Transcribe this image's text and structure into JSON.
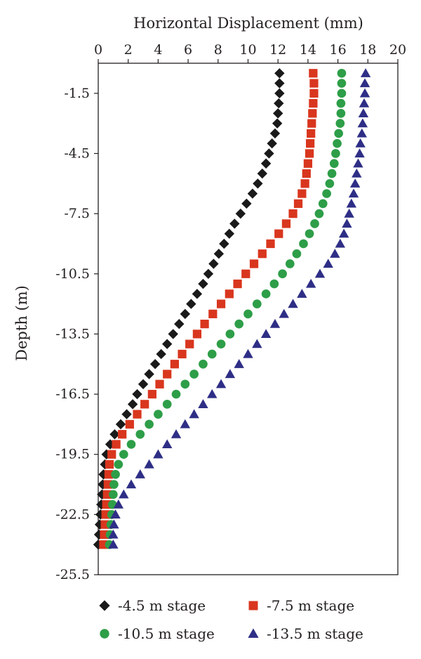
{
  "chart_data": {
    "type": "scatter",
    "xlabel": "Horizontal Displacement (mm)",
    "ylabel": "Depth (m)",
    "xlim": [
      0,
      20
    ],
    "ylim": [
      -25.5,
      0
    ],
    "x_ticks": [
      "0",
      "2",
      "4",
      "6",
      "8",
      "10",
      "12",
      "14",
      "16",
      "18",
      "20"
    ],
    "y_ticks": [
      "-1.5",
      "-4.5",
      "-7.5",
      "-10.5",
      "-13.5",
      "-16.5",
      "-19.5",
      "-22.5",
      "-25.5"
    ],
    "x_axis_position": "top",
    "grid": false,
    "legend_position": "bottom",
    "series": [
      {
        "name": "-4.5 m stage",
        "marker": "diamond",
        "color": "#1a1a1a",
        "points": [
          [
            12.1,
            -0.5
          ],
          [
            12.1,
            -1
          ],
          [
            12.1,
            -1.5
          ],
          [
            12.05,
            -2
          ],
          [
            12.0,
            -2.5
          ],
          [
            11.95,
            -3
          ],
          [
            11.8,
            -3.5
          ],
          [
            11.6,
            -4
          ],
          [
            11.4,
            -4.5
          ],
          [
            11.2,
            -5
          ],
          [
            10.95,
            -5.5
          ],
          [
            10.65,
            -6
          ],
          [
            10.3,
            -6.5
          ],
          [
            9.9,
            -7
          ],
          [
            9.5,
            -7.5
          ],
          [
            9.1,
            -8
          ],
          [
            8.75,
            -8.5
          ],
          [
            8.4,
            -9
          ],
          [
            8.05,
            -9.5
          ],
          [
            7.7,
            -10
          ],
          [
            7.35,
            -10.5
          ],
          [
            7.0,
            -11
          ],
          [
            6.6,
            -11.5
          ],
          [
            6.2,
            -12
          ],
          [
            5.8,
            -12.5
          ],
          [
            5.4,
            -13
          ],
          [
            5.0,
            -13.5
          ],
          [
            4.6,
            -14
          ],
          [
            4.2,
            -14.5
          ],
          [
            3.8,
            -15
          ],
          [
            3.4,
            -15.5
          ],
          [
            3.0,
            -16
          ],
          [
            2.6,
            -16.5
          ],
          [
            2.3,
            -17
          ],
          [
            1.9,
            -17.5
          ],
          [
            1.5,
            -18
          ],
          [
            1.1,
            -18.5
          ],
          [
            0.8,
            -19
          ],
          [
            0.55,
            -19.5
          ],
          [
            0.45,
            -20
          ],
          [
            0.35,
            -20.5
          ],
          [
            0.3,
            -21
          ],
          [
            0.25,
            -21.5
          ],
          [
            0.2,
            -22
          ],
          [
            0.15,
            -22.5
          ],
          [
            0.1,
            -23
          ],
          [
            0.05,
            -23.5
          ],
          [
            0.0,
            -24
          ]
        ]
      },
      {
        "name": "-7.5 m stage",
        "marker": "square",
        "color": "#d9361e",
        "points": [
          [
            14.35,
            -0.5
          ],
          [
            14.4,
            -1
          ],
          [
            14.4,
            -1.5
          ],
          [
            14.35,
            -2
          ],
          [
            14.3,
            -2.5
          ],
          [
            14.25,
            -3
          ],
          [
            14.2,
            -3.5
          ],
          [
            14.15,
            -4
          ],
          [
            14.1,
            -4.5
          ],
          [
            14.0,
            -5
          ],
          [
            13.9,
            -5.5
          ],
          [
            13.8,
            -6
          ],
          [
            13.6,
            -6.5
          ],
          [
            13.35,
            -7
          ],
          [
            13.0,
            -7.5
          ],
          [
            12.55,
            -8
          ],
          [
            12.05,
            -8.5
          ],
          [
            11.5,
            -9
          ],
          [
            10.95,
            -9.5
          ],
          [
            10.4,
            -10
          ],
          [
            9.85,
            -10.5
          ],
          [
            9.3,
            -11
          ],
          [
            8.75,
            -11.5
          ],
          [
            8.2,
            -12
          ],
          [
            7.65,
            -12.5
          ],
          [
            7.1,
            -13
          ],
          [
            6.6,
            -13.5
          ],
          [
            6.1,
            -14
          ],
          [
            5.6,
            -14.5
          ],
          [
            5.1,
            -15
          ],
          [
            4.6,
            -15.5
          ],
          [
            4.1,
            -16
          ],
          [
            3.6,
            -16.5
          ],
          [
            3.1,
            -17
          ],
          [
            2.6,
            -17.5
          ],
          [
            2.1,
            -18
          ],
          [
            1.6,
            -18.5
          ],
          [
            1.2,
            -19
          ],
          [
            0.9,
            -19.5
          ],
          [
            0.75,
            -20
          ],
          [
            0.7,
            -20.5
          ],
          [
            0.65,
            -21
          ],
          [
            0.6,
            -21.5
          ],
          [
            0.55,
            -22
          ],
          [
            0.5,
            -22.5
          ],
          [
            0.45,
            -23
          ],
          [
            0.4,
            -23.5
          ],
          [
            0.35,
            -24
          ]
        ]
      },
      {
        "name": "-10.5 m stage",
        "marker": "circle",
        "color": "#2e9e48",
        "points": [
          [
            16.25,
            -0.5
          ],
          [
            16.25,
            -1
          ],
          [
            16.25,
            -1.5
          ],
          [
            16.2,
            -2
          ],
          [
            16.2,
            -2.5
          ],
          [
            16.15,
            -3
          ],
          [
            16.05,
            -3.5
          ],
          [
            15.95,
            -4
          ],
          [
            15.85,
            -4.5
          ],
          [
            15.75,
            -5
          ],
          [
            15.6,
            -5.5
          ],
          [
            15.45,
            -6
          ],
          [
            15.25,
            -6.5
          ],
          [
            15.0,
            -7
          ],
          [
            14.75,
            -7.5
          ],
          [
            14.45,
            -8
          ],
          [
            14.1,
            -8.5
          ],
          [
            13.7,
            -9
          ],
          [
            13.25,
            -9.5
          ],
          [
            12.8,
            -10
          ],
          [
            12.3,
            -10.5
          ],
          [
            11.75,
            -11
          ],
          [
            11.2,
            -11.5
          ],
          [
            10.6,
            -12
          ],
          [
            10.0,
            -12.5
          ],
          [
            9.4,
            -13
          ],
          [
            8.8,
            -13.5
          ],
          [
            8.2,
            -14
          ],
          [
            7.6,
            -14.5
          ],
          [
            7.0,
            -15
          ],
          [
            6.4,
            -15.5
          ],
          [
            5.8,
            -16
          ],
          [
            5.2,
            -16.5
          ],
          [
            4.6,
            -17
          ],
          [
            4.0,
            -17.5
          ],
          [
            3.4,
            -18
          ],
          [
            2.8,
            -18.5
          ],
          [
            2.2,
            -19
          ],
          [
            1.7,
            -19.5
          ],
          [
            1.35,
            -20
          ],
          [
            1.15,
            -20.5
          ],
          [
            1.05,
            -21
          ],
          [
            1.0,
            -21.5
          ],
          [
            0.95,
            -22
          ],
          [
            0.9,
            -22.5
          ],
          [
            0.85,
            -23
          ],
          [
            0.8,
            -23.5
          ],
          [
            0.75,
            -24
          ]
        ]
      },
      {
        "name": "-13.5 m stage",
        "marker": "triangle",
        "color": "#2e2e86",
        "points": [
          [
            17.85,
            -0.5
          ],
          [
            17.8,
            -1
          ],
          [
            17.8,
            -1.5
          ],
          [
            17.75,
            -2
          ],
          [
            17.7,
            -2.5
          ],
          [
            17.65,
            -3
          ],
          [
            17.6,
            -3.5
          ],
          [
            17.5,
            -4
          ],
          [
            17.45,
            -4.5
          ],
          [
            17.35,
            -5
          ],
          [
            17.25,
            -5.5
          ],
          [
            17.15,
            -6
          ],
          [
            17.05,
            -6.5
          ],
          [
            16.9,
            -7
          ],
          [
            16.75,
            -7.5
          ],
          [
            16.6,
            -8
          ],
          [
            16.4,
            -8.5
          ],
          [
            16.15,
            -9
          ],
          [
            15.8,
            -9.5
          ],
          [
            15.35,
            -10
          ],
          [
            14.8,
            -10.5
          ],
          [
            14.2,
            -11
          ],
          [
            13.6,
            -11.5
          ],
          [
            13.0,
            -12
          ],
          [
            12.4,
            -12.5
          ],
          [
            11.8,
            -13
          ],
          [
            11.2,
            -13.5
          ],
          [
            10.6,
            -14
          ],
          [
            10.0,
            -14.5
          ],
          [
            9.4,
            -15
          ],
          [
            8.8,
            -15.5
          ],
          [
            8.2,
            -16
          ],
          [
            7.6,
            -16.5
          ],
          [
            7.0,
            -17
          ],
          [
            6.4,
            -17.5
          ],
          [
            5.8,
            -18
          ],
          [
            5.2,
            -18.5
          ],
          [
            4.6,
            -19
          ],
          [
            4.0,
            -19.5
          ],
          [
            3.4,
            -20
          ],
          [
            2.8,
            -20.5
          ],
          [
            2.2,
            -21
          ],
          [
            1.7,
            -21.5
          ],
          [
            1.35,
            -22
          ],
          [
            1.15,
            -22.5
          ],
          [
            1.05,
            -23
          ],
          [
            1.0,
            -23.5
          ],
          [
            1.0,
            -24
          ]
        ]
      }
    ]
  }
}
